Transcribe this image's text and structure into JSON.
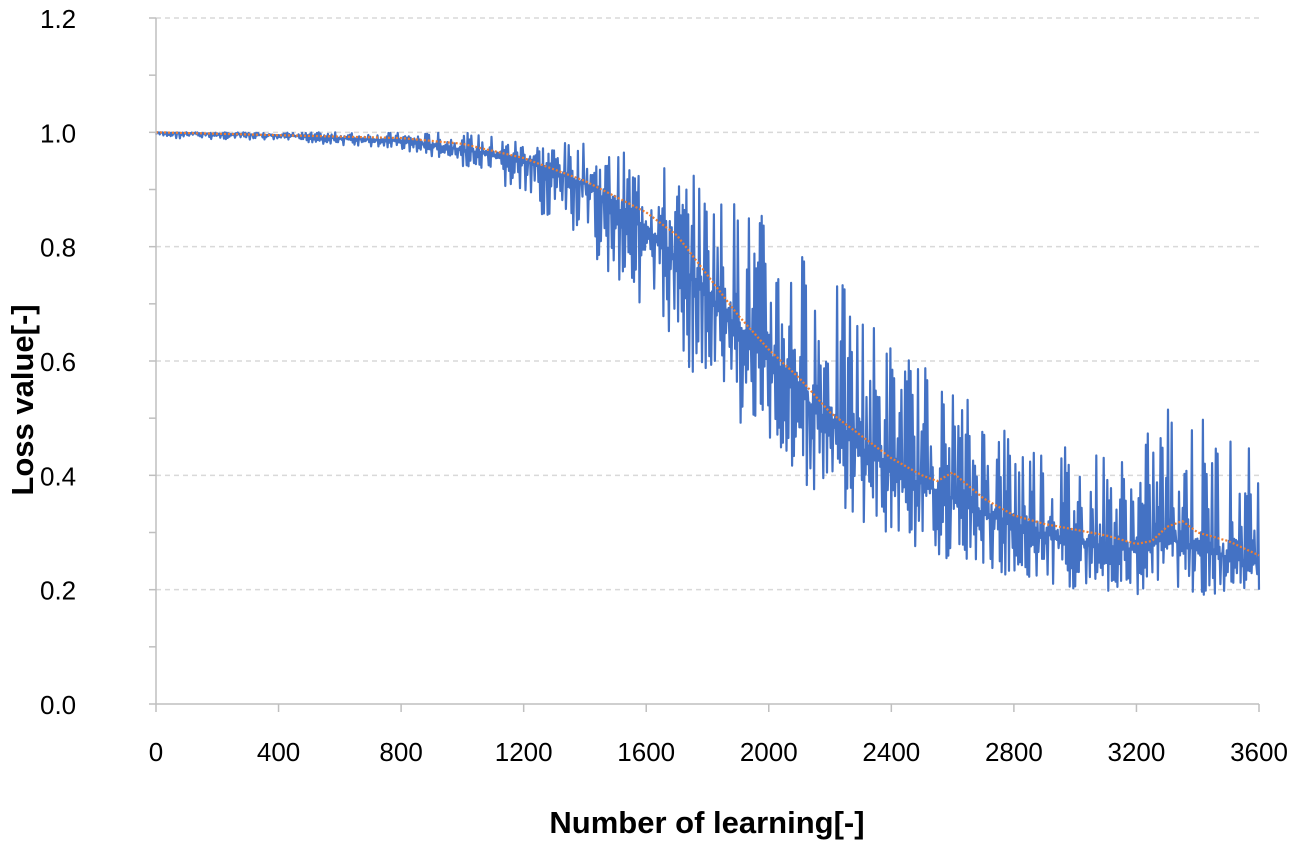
{
  "chart_data": {
    "type": "line",
    "title": "",
    "xlabel": "Number of learning[-]",
    "ylabel": "Loss value[-]",
    "xlim": [
      0,
      3600
    ],
    "ylim": [
      0.0,
      1.2
    ],
    "x_ticks": [
      "0",
      "400",
      "800",
      "1200",
      "1600",
      "2000",
      "2400",
      "2800",
      "3200",
      "3600"
    ],
    "y_ticks": [
      "0.0",
      "0.2",
      "0.4",
      "0.6",
      "0.8",
      "1.0",
      "1.2"
    ],
    "grid": "horizontal dashed",
    "legend": "none",
    "series": [
      {
        "color": "#4472c4",
        "style": "noisy",
        "x": [
          0,
          400,
          800,
          1000,
          1200,
          1400,
          1600,
          1800,
          2000,
          2200,
          2400,
          2600,
          2800,
          3000,
          3200,
          3300,
          3400,
          3600
        ],
        "center": [
          1.0,
          0.995,
          0.985,
          0.97,
          0.95,
          0.91,
          0.83,
          0.72,
          0.6,
          0.49,
          0.41,
          0.36,
          0.31,
          0.285,
          0.27,
          0.29,
          0.27,
          0.245
        ],
        "min": [
          0.99,
          0.985,
          0.97,
          0.94,
          0.88,
          0.79,
          0.69,
          0.54,
          0.44,
          0.34,
          0.29,
          0.25,
          0.22,
          0.2,
          0.19,
          0.21,
          0.19,
          0.19
        ],
        "max": [
          1.0,
          1.0,
          1.0,
          1.0,
          0.99,
          0.98,
          0.96,
          0.92,
          0.86,
          0.76,
          0.65,
          0.56,
          0.5,
          0.46,
          0.44,
          0.55,
          0.52,
          0.45
        ]
      },
      {
        "color": "#ed7d31",
        "style": "moving-average",
        "x": [
          0,
          400,
          800,
          1000,
          1200,
          1400,
          1600,
          1700,
          1800,
          1900,
          2000,
          2100,
          2200,
          2300,
          2400,
          2500,
          2550,
          2600,
          2700,
          2800,
          2900,
          3000,
          3100,
          3200,
          3250,
          3300,
          3350,
          3400,
          3500,
          3600
        ],
        "y": [
          1.0,
          0.995,
          0.99,
          0.98,
          0.955,
          0.915,
          0.86,
          0.82,
          0.75,
          0.68,
          0.62,
          0.57,
          0.51,
          0.47,
          0.43,
          0.4,
          0.39,
          0.405,
          0.36,
          0.33,
          0.315,
          0.305,
          0.295,
          0.28,
          0.285,
          0.31,
          0.32,
          0.3,
          0.285,
          0.26
        ]
      }
    ]
  }
}
